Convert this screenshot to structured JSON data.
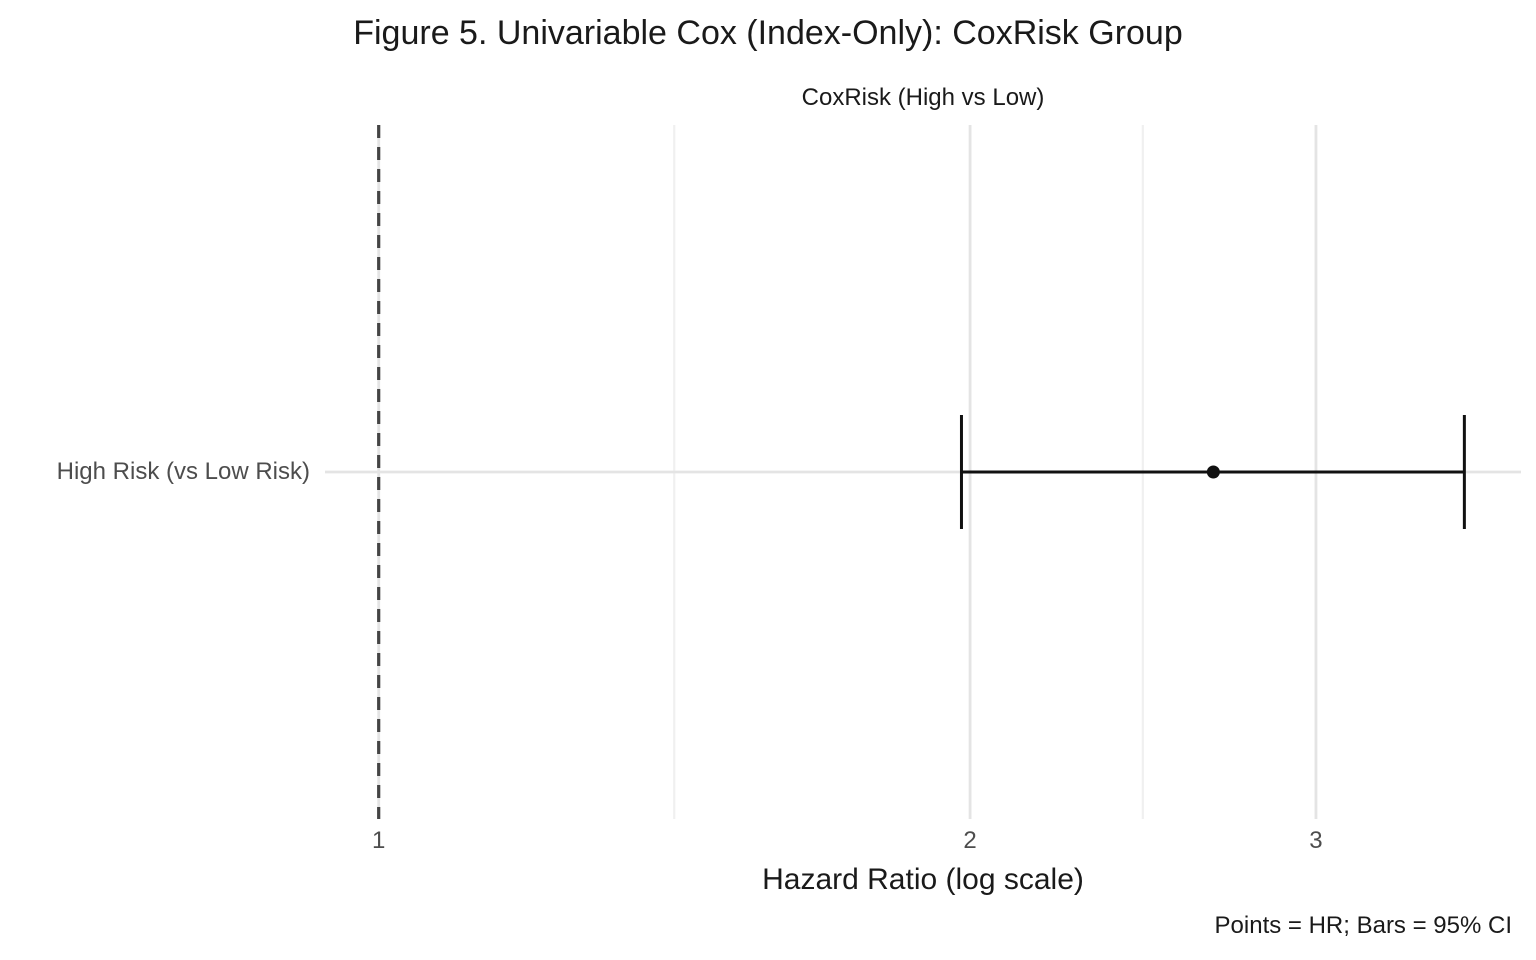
{
  "chart_data": {
    "type": "scatter",
    "subtype": "forest-plot",
    "title": "Figure 5. Univariable Cox (Index-Only): CoxRisk Group",
    "strip_label": "CoxRisk (High vs Low)",
    "xlabel": "Hazard Ratio (log scale)",
    "caption": "Points = HR; Bars = 95% CI",
    "x_scale": "log10",
    "xlim": [
      0.939,
      3.815
    ],
    "x_ticks": [
      1,
      2,
      3
    ],
    "x_minor_ticks": [
      1.414,
      2.449
    ],
    "grid": true,
    "legend": "none",
    "reference_line": {
      "x": 1,
      "style": "dashed"
    },
    "rows": [
      {
        "label": "High Risk (vs Low Risk)",
        "hr": 2.66,
        "ci_low": 1.98,
        "ci_high": 3.57
      }
    ],
    "colors": {
      "text_primary": "#1a1a1a",
      "text_axis": "#4d4d4d",
      "grid_major": "#e4e4e4",
      "grid_minor": "#f0f0f0",
      "reference_line": "#444444",
      "estimate": "#111111"
    }
  }
}
